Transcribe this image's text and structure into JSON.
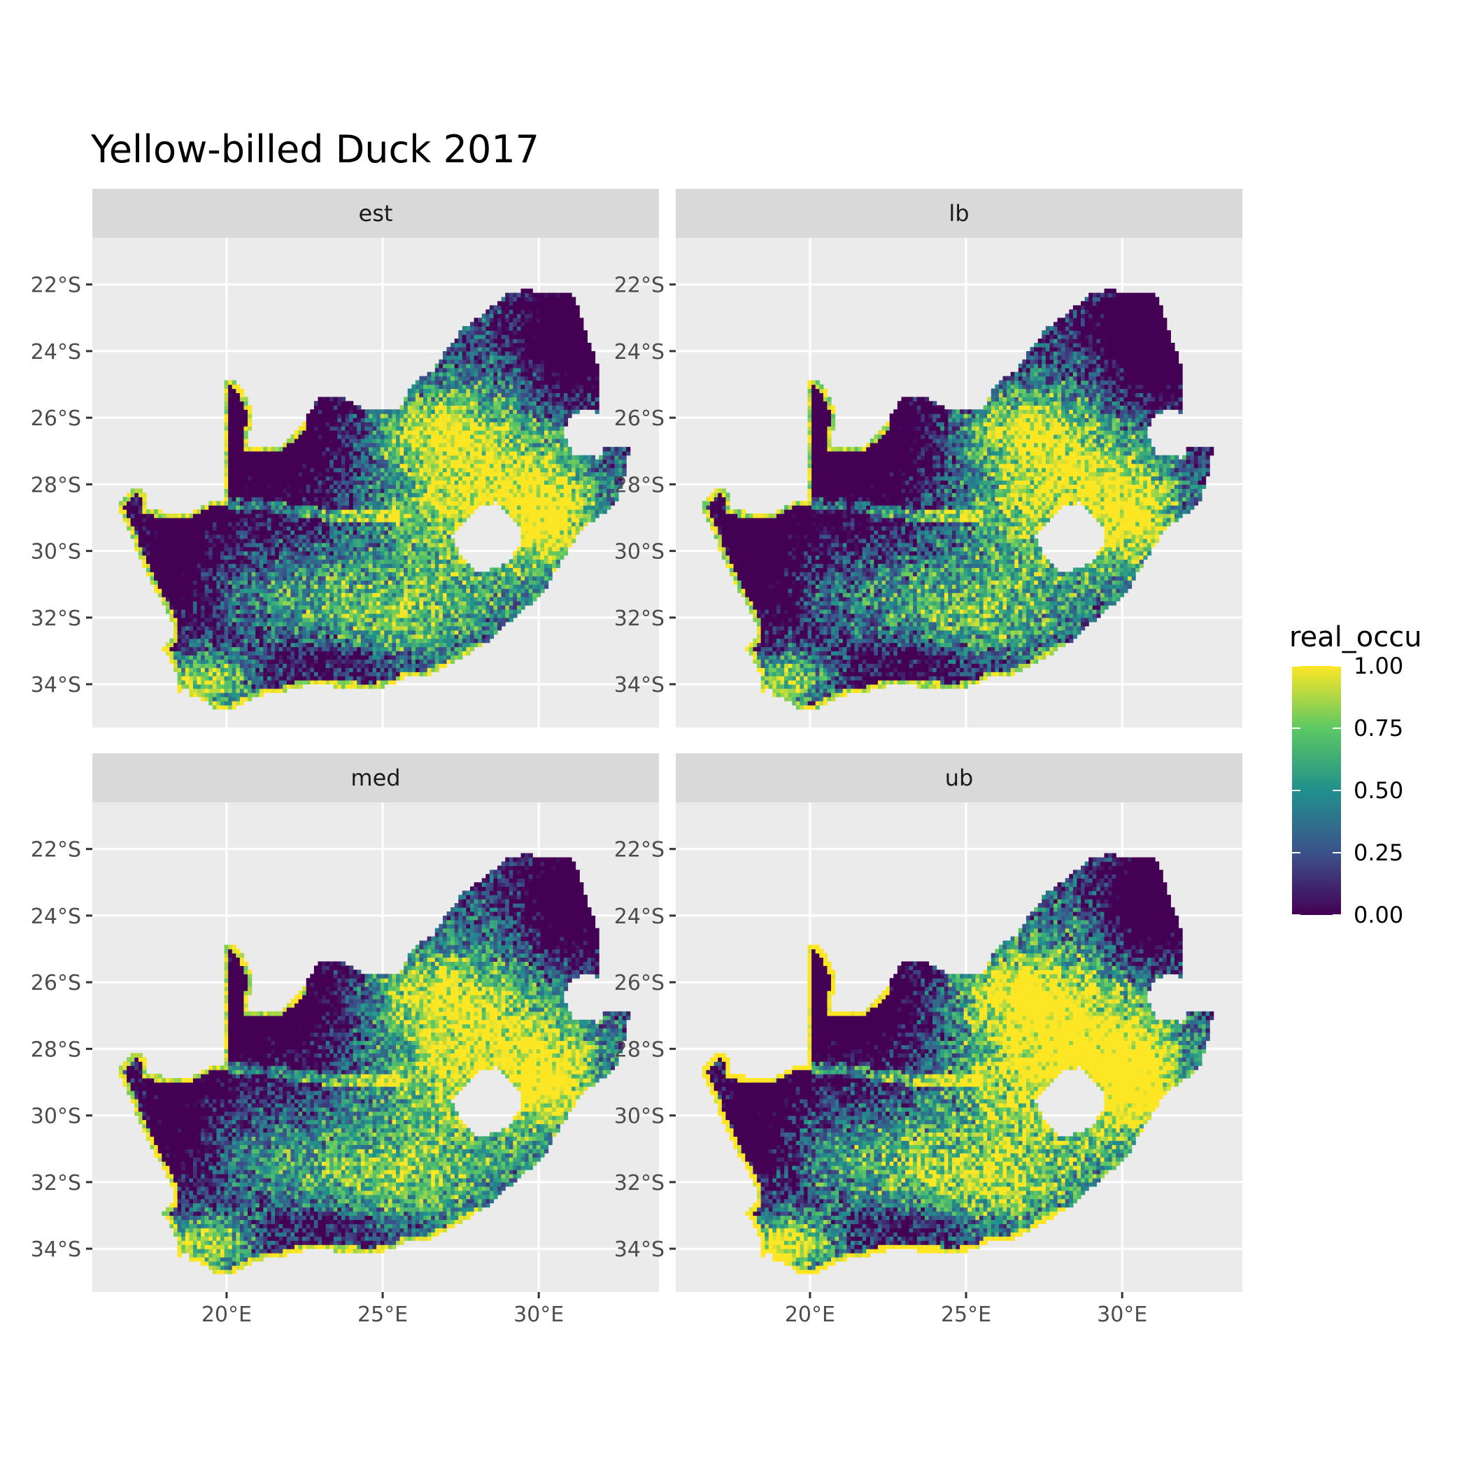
{
  "title": "Yellow-billed Duck 2017",
  "chart_data": {
    "type": "heatmap",
    "title": "Yellow-billed Duck 2017",
    "xlabel": "",
    "ylabel": "",
    "xlim": [
      15.7,
      33.85
    ],
    "ylim": [
      -35.3,
      -20.6
    ],
    "x_ticks": [
      {
        "value": 20,
        "label": "20°E"
      },
      {
        "value": 25,
        "label": "25°E"
      },
      {
        "value": 30,
        "label": "30°E"
      }
    ],
    "y_ticks": [
      {
        "value": -22,
        "label": "22°S"
      },
      {
        "value": -24,
        "label": "24°S"
      },
      {
        "value": -26,
        "label": "26°S"
      },
      {
        "value": -28,
        "label": "28°S"
      },
      {
        "value": -30,
        "label": "30°S"
      },
      {
        "value": -32,
        "label": "32°S"
      },
      {
        "value": -34,
        "label": "34°S"
      }
    ],
    "panels": [
      "est",
      "lb",
      "med",
      "ub"
    ],
    "grid": true,
    "legend": {
      "title": "real_occu",
      "position": "right",
      "range": [
        0,
        1
      ],
      "breaks": [
        {
          "value": 1.0,
          "label": "1.00"
        },
        {
          "value": 0.75,
          "label": "0.75"
        },
        {
          "value": 0.5,
          "label": "0.50"
        },
        {
          "value": 0.25,
          "label": "0.25"
        },
        {
          "value": 0.0,
          "label": "0.00"
        }
      ],
      "palette": [
        "#440154",
        "#3b528b",
        "#21908c",
        "#5dc863",
        "#fde725"
      ]
    },
    "colors": {
      "panel_background": "#ebebeb",
      "strip_background": "#d9d9d9",
      "grid": "#ffffff",
      "hole": "#ffffff"
    }
  }
}
